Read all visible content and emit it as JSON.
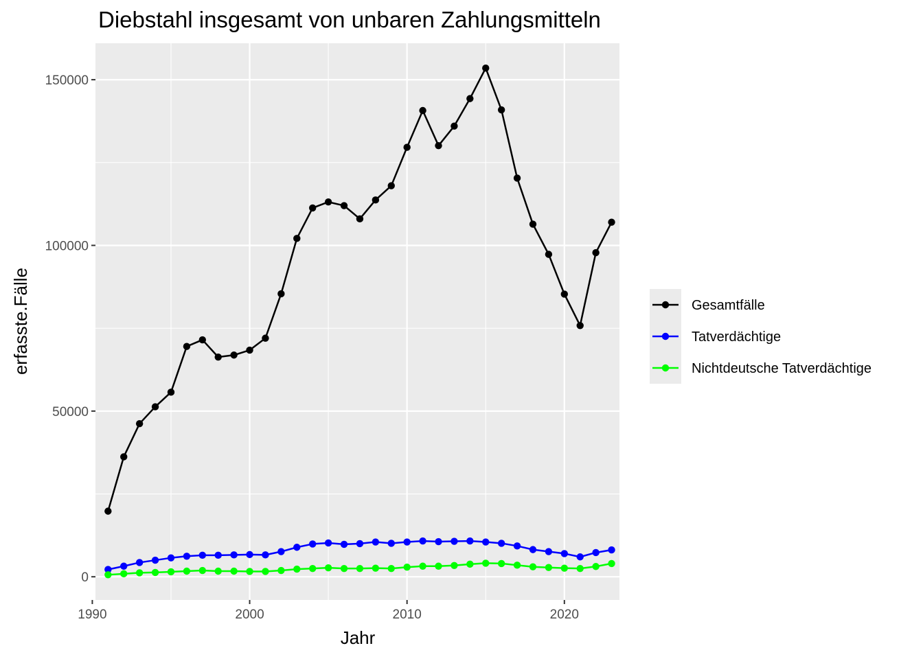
{
  "chart_data": {
    "type": "line",
    "title": "Diebstahl insgesamt von unbaren Zahlungsmitteln",
    "xlabel": "Jahr",
    "ylabel": "erfasste.Fälle",
    "xlim": [
      1990.2,
      2023.5
    ],
    "ylim": [
      -7000,
      161000
    ],
    "xticks": [
      1990,
      2000,
      2010,
      2020
    ],
    "yticks": [
      0,
      50000,
      100000,
      150000
    ],
    "grid": true,
    "legend_position": "right",
    "x": [
      1991,
      1992,
      1993,
      1994,
      1995,
      1996,
      1997,
      1998,
      1999,
      2000,
      2001,
      2002,
      2003,
      2004,
      2005,
      2006,
      2007,
      2008,
      2009,
      2010,
      2011,
      2012,
      2013,
      2014,
      2015,
      2016,
      2017,
      2018,
      2019,
      2020,
      2021,
      2022,
      2023
    ],
    "series": [
      {
        "name": "Gesamtfälle",
        "color": "#000000",
        "values": [
          19800,
          36200,
          46200,
          51300,
          55700,
          69500,
          71500,
          66300,
          66900,
          68400,
          72000,
          85400,
          102100,
          111300,
          113100,
          112000,
          108000,
          113700,
          118000,
          129600,
          140700,
          130100,
          136000,
          144300,
          153500,
          140900,
          120300,
          106400,
          97300,
          85300,
          75800,
          97800,
          107000
        ]
      },
      {
        "name": "Tatverdächtige",
        "color": "#0000ff",
        "values": [
          2200,
          3200,
          4300,
          5000,
          5700,
          6200,
          6500,
          6500,
          6600,
          6700,
          6600,
          7600,
          8900,
          9900,
          10200,
          9800,
          10000,
          10500,
          10100,
          10500,
          10800,
          10600,
          10700,
          10800,
          10500,
          10100,
          9300,
          8200,
          7600,
          7000,
          6000,
          7300,
          8100
        ]
      },
      {
        "name": "Nichtdeutsche Tatverdächtige",
        "color": "#00ff00",
        "values": [
          600,
          900,
          1200,
          1300,
          1500,
          1700,
          1900,
          1700,
          1700,
          1600,
          1600,
          1900,
          2300,
          2500,
          2700,
          2500,
          2500,
          2600,
          2500,
          2900,
          3200,
          3200,
          3400,
          3800,
          4100,
          4000,
          3500,
          3000,
          2800,
          2600,
          2500,
          3100,
          4000
        ]
      }
    ]
  }
}
